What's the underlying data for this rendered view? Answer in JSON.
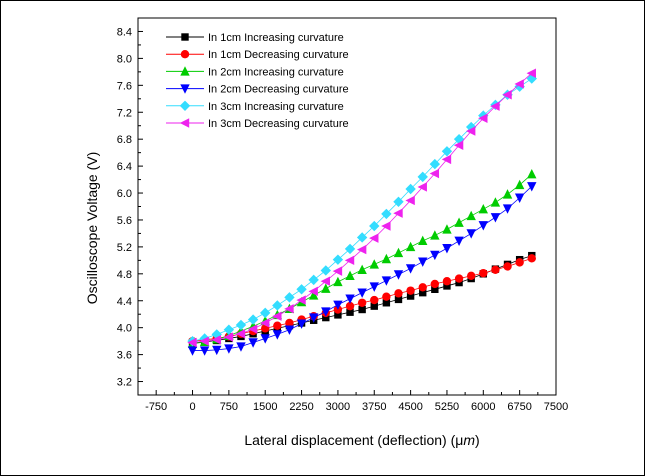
{
  "chart_data": {
    "type": "scatter",
    "title": "",
    "xlabel": "Lateral displacement (deflection) (μm)",
    "xlabel_prefix": "Lateral displacement (deflection) (",
    "xlabel_mu": "μ",
    "xlabel_m": "m",
    "xlabel_suffix": ")",
    "ylabel": "Oscilloscope Voltage (V)",
    "xlim": [
      -1125,
      7500
    ],
    "ylim": [
      3.0,
      8.6
    ],
    "xticks": [
      "-750",
      "0",
      "750",
      "1500",
      "2250",
      "3000",
      "3750",
      "4500",
      "5250",
      "6000",
      "6750",
      "7500"
    ],
    "yticks": [
      "3.2",
      "3.6",
      "4.0",
      "4.4",
      "4.8",
      "5.2",
      "5.6",
      "6.0",
      "6.4",
      "6.8",
      "7.2",
      "7.6",
      "8.0",
      "8.4"
    ],
    "grid": false,
    "legend_position": "top-left",
    "x": [
      0,
      250,
      500,
      750,
      1000,
      1250,
      1500,
      1750,
      2000,
      2250,
      2500,
      2750,
      3000,
      3250,
      3500,
      3750,
      4000,
      4250,
      4500,
      4750,
      5000,
      5250,
      5500,
      5750,
      6000,
      6250,
      6500,
      6750,
      7000
    ],
    "series": [
      {
        "name": "In 1cm Increasing curvature",
        "color": "#000000",
        "marker": "square",
        "values": [
          3.78,
          3.79,
          3.81,
          3.84,
          3.87,
          3.91,
          3.95,
          3.99,
          4.03,
          4.07,
          4.11,
          4.15,
          4.19,
          4.23,
          4.27,
          4.32,
          4.37,
          4.42,
          4.47,
          4.52,
          4.57,
          4.62,
          4.67,
          4.73,
          4.8,
          4.87,
          4.94,
          5.01,
          5.07
        ]
      },
      {
        "name": "In 1cm Decreasing curvature",
        "color": "#ff0000",
        "marker": "circle",
        "values": [
          3.8,
          3.82,
          3.84,
          3.87,
          3.91,
          3.95,
          3.99,
          4.03,
          4.07,
          4.12,
          4.17,
          4.22,
          4.27,
          4.32,
          4.37,
          4.41,
          4.46,
          4.51,
          4.55,
          4.6,
          4.65,
          4.69,
          4.73,
          4.77,
          4.81,
          4.86,
          4.91,
          4.97,
          5.03
        ]
      },
      {
        "name": "In 2cm Increasing curvature",
        "color": "#00cc00",
        "marker": "triangle-up",
        "values": [
          3.76,
          3.79,
          3.83,
          3.88,
          3.95,
          4.02,
          4.1,
          4.19,
          4.28,
          4.38,
          4.48,
          4.58,
          4.68,
          4.77,
          4.86,
          4.94,
          5.02,
          5.11,
          5.2,
          5.29,
          5.37,
          5.46,
          5.56,
          5.66,
          5.76,
          5.86,
          5.98,
          6.12,
          6.28
        ]
      },
      {
        "name": "In 2cm Decreasing curvature",
        "color": "#0000ff",
        "marker": "triangle-down",
        "values": [
          3.66,
          3.66,
          3.67,
          3.69,
          3.72,
          3.78,
          3.84,
          3.9,
          3.97,
          4.06,
          4.15,
          4.24,
          4.34,
          4.43,
          4.52,
          4.61,
          4.7,
          4.79,
          4.88,
          4.98,
          5.08,
          5.18,
          5.29,
          5.4,
          5.52,
          5.64,
          5.77,
          5.93,
          6.1
        ]
      },
      {
        "name": "In 3cm Increasing curvature",
        "color": "#33ddff",
        "marker": "diamond",
        "values": [
          3.8,
          3.84,
          3.9,
          3.97,
          4.04,
          4.12,
          4.22,
          4.33,
          4.45,
          4.57,
          4.71,
          4.85,
          5.01,
          5.17,
          5.34,
          5.51,
          5.69,
          5.87,
          6.06,
          6.24,
          6.43,
          6.62,
          6.8,
          6.98,
          7.15,
          7.31,
          7.46,
          7.58,
          7.7
        ]
      },
      {
        "name": "In 3cm Decreasing curvature",
        "color": "#ee22ee",
        "marker": "triangle-left",
        "values": [
          3.78,
          3.8,
          3.82,
          3.86,
          3.91,
          3.98,
          4.07,
          4.17,
          4.28,
          4.41,
          4.54,
          4.69,
          4.84,
          5.0,
          5.16,
          5.33,
          5.51,
          5.7,
          5.89,
          6.09,
          6.29,
          6.5,
          6.71,
          6.92,
          7.11,
          7.29,
          7.46,
          7.62,
          7.78
        ]
      }
    ]
  }
}
